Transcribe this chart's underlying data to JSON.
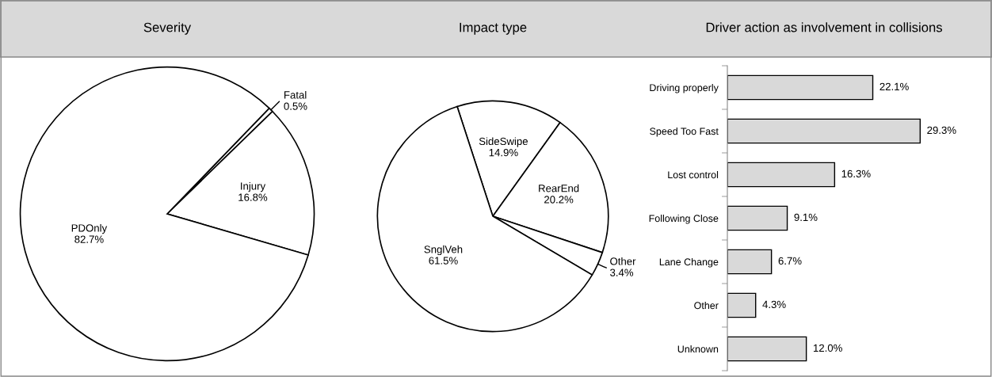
{
  "chart_data": [
    {
      "type": "pie",
      "title": "Severity",
      "categories": [
        "Fatal",
        "Injury",
        "PDOnly"
      ],
      "values": [
        0.5,
        16.8,
        82.7
      ],
      "value_labels": [
        "0.5%",
        "16.8%",
        "82.7%"
      ],
      "colors": [
        "#ffffff",
        "#ffffff",
        "#ffffff"
      ]
    },
    {
      "type": "pie",
      "title": "Impact type",
      "categories": [
        "SideSwipe",
        "RearEnd",
        "Other",
        "SnglVeh"
      ],
      "values": [
        14.9,
        20.2,
        3.4,
        61.5
      ],
      "value_labels": [
        "14.9%",
        "20.2%",
        "3.4%",
        "61.5%"
      ],
      "colors": [
        "#ffffff",
        "#ffffff",
        "#ffffff",
        "#ffffff"
      ]
    },
    {
      "type": "bar",
      "orientation": "horizontal",
      "title": "Driver action as involvement in collisions",
      "categories": [
        "Driving properly",
        "Speed Too Fast",
        "Lost control",
        "Following Close",
        "Lane Change",
        "Other",
        "Unknown"
      ],
      "values": [
        22.1,
        29.3,
        16.3,
        9.1,
        6.7,
        4.3,
        12.0
      ],
      "value_labels": [
        "22.1%",
        "29.3%",
        "16.3%",
        "9.1%",
        "6.7%",
        "4.3%",
        "12.0%"
      ],
      "color": "#d9d9d9"
    }
  ]
}
